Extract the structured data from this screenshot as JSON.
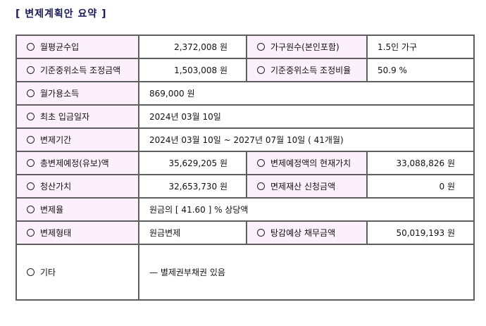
{
  "title": "[ 변제계획안 요약 ]",
  "rows": [
    {
      "l1": "월평균수입",
      "v1": "2,372,008 원",
      "l2": "가구원수(본인포함)",
      "v2": "1.5인 가구"
    },
    {
      "l1": "기준중위소득 조정금액",
      "v1": "1,503,008 원",
      "l2": "기준중위소득 조정비율",
      "v2": "50.9 %"
    },
    {
      "l1": "월가용소득",
      "v1": "869,000 원"
    },
    {
      "l1": "최초 입금일자",
      "v1": "2024년 03월 10일"
    },
    {
      "l1": "변제기간",
      "v1": "2024년 03월 10일 ~ 2027년 07월 10일 ( 41개월)"
    },
    {
      "l1": "총변제예정(유보)액",
      "v1": "35,629,205 원",
      "l2": "변제예정액의 현재가치",
      "v2": "33,088,826 원"
    },
    {
      "l1": "청산가치",
      "v1": "32,653,730 원",
      "l2": "면제재산 신청금액",
      "v2": "0 원"
    },
    {
      "l1": "변제율",
      "v1": "원금의 [ 41.60 ] % 상당액"
    },
    {
      "l1": "변제형태",
      "v1": "원금변제",
      "l2": "탕감예상 채무금액",
      "v2": "50,019,193 원"
    },
    {
      "l1": "기타",
      "v1": "— 별제권부채권 있음"
    }
  ]
}
